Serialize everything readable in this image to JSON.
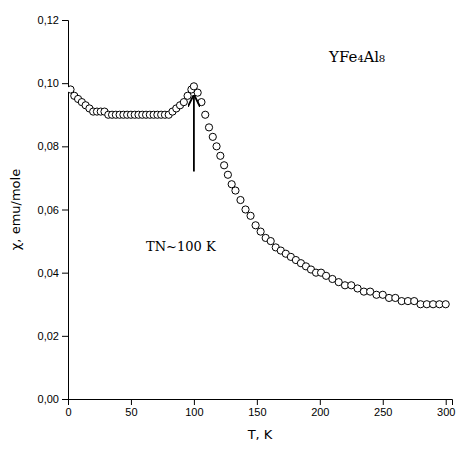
{
  "chart_data": {
    "type": "scatter",
    "x_label": "T, K",
    "y_label": "χ, emu/mole",
    "xlim": [
      0,
      305
    ],
    "ylim": [
      0,
      0.12
    ],
    "xticks": [
      0,
      50,
      100,
      150,
      200,
      250,
      300
    ],
    "yticks": [
      {
        "value": 0.0,
        "label": "0,00"
      },
      {
        "value": 0.02,
        "label": "0,02"
      },
      {
        "value": 0.04,
        "label": "0,04"
      },
      {
        "value": 0.06,
        "label": "0,06"
      },
      {
        "value": 0.08,
        "label": "0,08"
      },
      {
        "value": 0.1,
        "label": "0,10"
      },
      {
        "value": 0.12,
        "label": "0,12"
      }
    ],
    "grid": false,
    "marker": "open-circle",
    "color": "black",
    "x": [
      2,
      5,
      8,
      11,
      14,
      17,
      20,
      23,
      26,
      29,
      32,
      35,
      38,
      41,
      44,
      47,
      50,
      53,
      56,
      59,
      62,
      65,
      68,
      71,
      74,
      77,
      80,
      83,
      86,
      89,
      92,
      95,
      98,
      100,
      103,
      106,
      109,
      112,
      115,
      118,
      121,
      124,
      127,
      130,
      133,
      137,
      141,
      145,
      149,
      153,
      157,
      161,
      165,
      169,
      173,
      177,
      181,
      185,
      189,
      193,
      197,
      201,
      205,
      210,
      215,
      220,
      225,
      230,
      235,
      240,
      245,
      250,
      255,
      260,
      265,
      270,
      275,
      280,
      285,
      290,
      295,
      300
    ],
    "values": [
      0.098,
      0.096,
      0.095,
      0.094,
      0.093,
      0.092,
      0.091,
      0.091,
      0.091,
      0.091,
      0.09,
      0.09,
      0.09,
      0.09,
      0.09,
      0.09,
      0.09,
      0.09,
      0.09,
      0.09,
      0.09,
      0.09,
      0.09,
      0.09,
      0.09,
      0.09,
      0.09,
      0.091,
      0.092,
      0.093,
      0.094,
      0.096,
      0.098,
      0.099,
      0.097,
      0.094,
      0.09,
      0.086,
      0.083,
      0.08,
      0.077,
      0.074,
      0.071,
      0.068,
      0.066,
      0.063,
      0.06,
      0.058,
      0.055,
      0.053,
      0.051,
      0.05,
      0.048,
      0.047,
      0.046,
      0.045,
      0.044,
      0.043,
      0.042,
      0.041,
      0.04,
      0.04,
      0.039,
      0.038,
      0.037,
      0.036,
      0.036,
      0.035,
      0.034,
      0.034,
      0.033,
      0.033,
      0.032,
      0.032,
      0.031,
      0.031,
      0.031,
      0.03,
      0.03,
      0.03,
      0.03,
      0.03
    ],
    "compound_label": "YFe₄Al₈",
    "annotation": {
      "text": "TN~100 K",
      "x": 62,
      "y": 0.047
    },
    "arrow": {
      "x": 100,
      "y_from": 0.072,
      "y_to": 0.096
    }
  }
}
